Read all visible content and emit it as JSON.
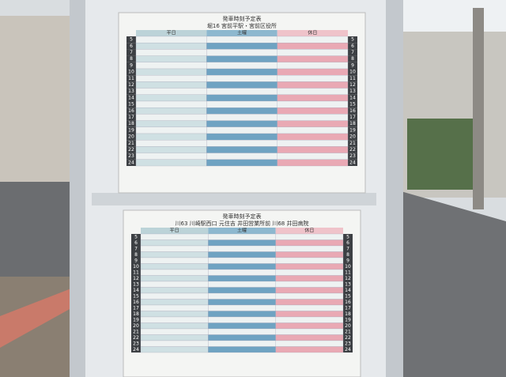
{
  "top_board": {
    "title": "発車時刻予定表",
    "route": "堀16 宮前平駅・宮前区役所",
    "columns": [
      "平日",
      "土曜",
      "休日"
    ],
    "hours": [
      5,
      6,
      7,
      8,
      9,
      10,
      11,
      12,
      13,
      14,
      15,
      16,
      17,
      18,
      19,
      20,
      21,
      22,
      23,
      24
    ]
  },
  "bottom_board": {
    "title": "発車時刻予定表",
    "route": "川63 川崎駅西口 元住吉 井田営業所前 川68 井田病院",
    "columns": [
      "平日",
      "土曜",
      "休日"
    ],
    "hours": [
      5,
      6,
      7,
      8,
      9,
      10,
      11,
      12,
      13,
      14,
      15,
      16,
      17,
      18,
      19,
      20,
      21,
      22,
      23,
      24
    ]
  }
}
